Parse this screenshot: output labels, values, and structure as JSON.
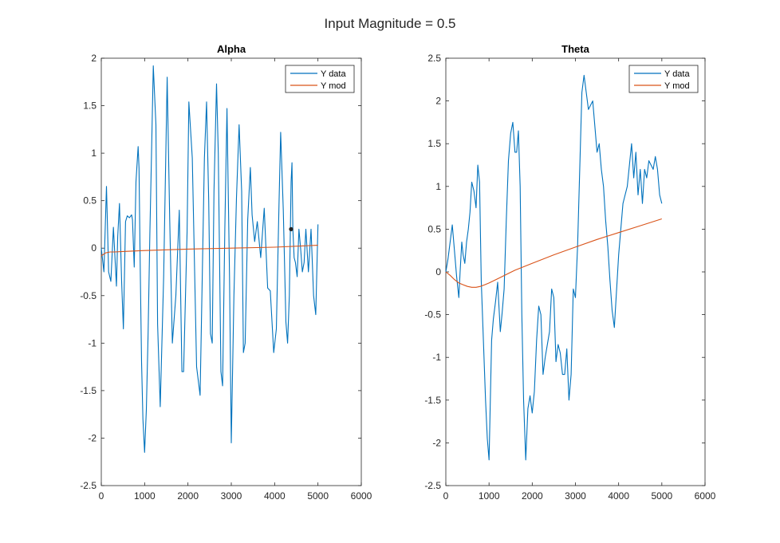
{
  "figure": {
    "suptitle": "Input Magnitude = 0.5"
  },
  "colors": {
    "y_data": "#0072BD",
    "y_mod": "#D95319",
    "axis": "#262626",
    "marker": "#222222"
  },
  "chart_data": [
    {
      "type": "line",
      "title": "Alpha",
      "xlabel": "",
      "ylabel": "",
      "xlim": [
        0,
        6000
      ],
      "ylim": [
        -2.5,
        2
      ],
      "xticks": [
        0,
        1000,
        2000,
        3000,
        4000,
        5000,
        6000
      ],
      "yticks": [
        -2.5,
        -2,
        -1.5,
        -1,
        -0.5,
        0,
        0.5,
        1,
        1.5,
        2
      ],
      "legend": {
        "position": "top-right",
        "entries": [
          "Y data",
          "Y mod"
        ]
      },
      "grid": false,
      "series": [
        {
          "name": "Y data",
          "color": "#0072BD",
          "x": [
            0,
            60,
            120,
            170,
            220,
            280,
            350,
            380,
            420,
            470,
            510,
            560,
            600,
            650,
            700,
            720,
            760,
            800,
            850,
            870,
            900,
            930,
            960,
            1000,
            1040,
            1080,
            1120,
            1160,
            1200,
            1260,
            1300,
            1360,
            1440,
            1520,
            1580,
            1640,
            1720,
            1800,
            1860,
            1900,
            1980,
            2020,
            2100,
            2200,
            2280,
            2380,
            2430,
            2480,
            2520,
            2560,
            2600,
            2660,
            2700,
            2760,
            2800,
            2850,
            2900,
            2960,
            3000,
            3060,
            3120,
            3180,
            3240,
            3280,
            3320,
            3380,
            3440,
            3480,
            3540,
            3600,
            3680,
            3760,
            3840,
            3900,
            3980,
            4040,
            4100,
            4140,
            4200,
            4260,
            4300,
            4340,
            4380,
            4400,
            4420,
            4450,
            4480,
            4520,
            4560,
            4600,
            4640,
            4680,
            4720,
            4780,
            4840,
            4900,
            4950,
            5000
          ],
          "y": [
            0,
            -0.25,
            0.65,
            -0.25,
            -0.35,
            0.22,
            -0.4,
            0.12,
            0.47,
            -0.35,
            -0.85,
            0.28,
            0.34,
            0.32,
            0.35,
            0.3,
            -0.2,
            0.7,
            1.07,
            0.85,
            -0.25,
            -1.2,
            -1.8,
            -2.15,
            -1.7,
            -0.9,
            0.15,
            1.0,
            1.92,
            1.3,
            -0.8,
            -1.67,
            -0.3,
            1.8,
            0.3,
            -1.0,
            -0.5,
            0.4,
            -1.3,
            -1.3,
            0.18,
            1.54,
            0.95,
            -1.25,
            -1.55,
            0.95,
            1.54,
            0.5,
            -0.9,
            -1.0,
            0.6,
            1.73,
            1.0,
            -1.3,
            -1.45,
            0.2,
            1.47,
            -0.3,
            -2.05,
            -0.5,
            0.53,
            1.3,
            0.6,
            -1.1,
            -1.0,
            0.3,
            0.85,
            0.35,
            0.07,
            0.28,
            -0.1,
            0.42,
            -0.42,
            -0.45,
            -1.1,
            -0.85,
            0.45,
            1.22,
            0.4,
            -0.78,
            -1.0,
            -0.5,
            0.7,
            0.9,
            0.2,
            -0.1,
            -0.15,
            -0.3,
            0.2,
            0.0,
            -0.25,
            -0.15,
            0.2,
            -0.25,
            0.2,
            -0.5,
            -0.7,
            0.25
          ]
        },
        {
          "name": "Y mod",
          "color": "#D95319",
          "x": [
            0,
            100,
            200,
            300,
            500,
            1000,
            2000,
            3000,
            4000,
            5000
          ],
          "y": [
            -0.08,
            -0.05,
            -0.04,
            -0.04,
            -0.035,
            -0.025,
            -0.01,
            0.0,
            0.01,
            0.03
          ]
        }
      ],
      "markers": [
        {
          "x": 4380,
          "y": 0.2
        }
      ]
    },
    {
      "type": "line",
      "title": "Theta",
      "xlabel": "",
      "ylabel": "",
      "xlim": [
        0,
        6000
      ],
      "ylim": [
        -2.5,
        2.5
      ],
      "xticks": [
        0,
        1000,
        2000,
        3000,
        4000,
        5000,
        6000
      ],
      "yticks": [
        -2.5,
        -2,
        -1.5,
        -1,
        -0.5,
        0,
        0.5,
        1,
        1.5,
        2,
        2.5
      ],
      "legend": {
        "position": "top-right",
        "entries": [
          "Y data",
          "Y mod"
        ]
      },
      "grid": false,
      "series": [
        {
          "name": "Y data",
          "color": "#0072BD",
          "x": [
            0,
            50,
            100,
            150,
            200,
            250,
            300,
            330,
            370,
            400,
            440,
            480,
            520,
            560,
            600,
            650,
            700,
            740,
            780,
            820,
            870,
            920,
            960,
            1000,
            1030,
            1060,
            1100,
            1150,
            1200,
            1260,
            1300,
            1350,
            1400,
            1450,
            1500,
            1550,
            1600,
            1640,
            1680,
            1720,
            1760,
            1800,
            1850,
            1900,
            1950,
            2000,
            2050,
            2100,
            2150,
            2200,
            2250,
            2300,
            2400,
            2450,
            2500,
            2550,
            2600,
            2650,
            2700,
            2750,
            2800,
            2850,
            2900,
            2950,
            3000,
            3050,
            3100,
            3150,
            3200,
            3300,
            3400,
            3500,
            3550,
            3600,
            3650,
            3700,
            3750,
            3800,
            3850,
            3900,
            4000,
            4100,
            4200,
            4300,
            4350,
            4400,
            4450,
            4500,
            4550,
            4600,
            4650,
            4700,
            4750,
            4800,
            4850,
            4900,
            4950,
            5000
          ],
          "y": [
            0,
            0.15,
            0.35,
            0.55,
            0.25,
            -0.05,
            -0.3,
            0.0,
            0.35,
            0.2,
            0.1,
            0.35,
            0.5,
            0.7,
            1.05,
            0.95,
            0.75,
            1.25,
            1.05,
            -0.1,
            -0.8,
            -1.5,
            -1.95,
            -2.2,
            -1.5,
            -0.8,
            -0.55,
            -0.35,
            -0.12,
            -0.7,
            -0.5,
            -0.2,
            0.6,
            1.3,
            1.62,
            1.75,
            1.4,
            1.4,
            1.65,
            1.0,
            -0.5,
            -1.5,
            -2.2,
            -1.6,
            -1.45,
            -1.65,
            -1.4,
            -0.8,
            -0.4,
            -0.5,
            -1.2,
            -1.0,
            -0.7,
            -0.2,
            -0.3,
            -1.05,
            -0.85,
            -0.95,
            -1.2,
            -1.2,
            -0.9,
            -1.5,
            -1.2,
            -0.2,
            -0.3,
            0.3,
            1.2,
            2.1,
            2.3,
            1.9,
            2.0,
            1.4,
            1.5,
            1.2,
            1.0,
            0.6,
            0.3,
            -0.1,
            -0.45,
            -0.65,
            0.2,
            0.8,
            1.0,
            1.5,
            1.1,
            1.4,
            0.9,
            1.2,
            0.8,
            1.2,
            1.1,
            1.3,
            1.25,
            1.2,
            1.35,
            1.2,
            0.9,
            0.8
          ]
        },
        {
          "name": "Y mod",
          "color": "#D95319",
          "x": [
            0,
            100,
            200,
            300,
            400,
            500,
            600,
            700,
            800,
            900,
            1000,
            1200,
            1400,
            1600,
            2000,
            2500,
            3000,
            3500,
            4000,
            4500,
            5000
          ],
          "y": [
            0.0,
            -0.04,
            -0.09,
            -0.13,
            -0.15,
            -0.17,
            -0.18,
            -0.18,
            -0.17,
            -0.15,
            -0.13,
            -0.08,
            -0.03,
            0.02,
            0.1,
            0.2,
            0.29,
            0.38,
            0.46,
            0.54,
            0.62
          ]
        }
      ],
      "markers": []
    }
  ]
}
